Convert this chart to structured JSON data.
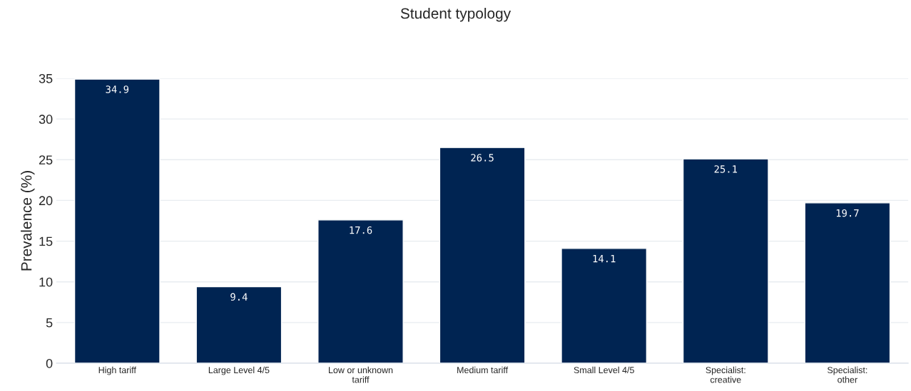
{
  "chart_data": {
    "type": "bar",
    "title": "Student typology",
    "ylabel": "Prevalence (%)",
    "categories": [
      "High tariff",
      "Large Level 4/5",
      "Low or unknown tariff",
      "Medium tariff",
      "Small Level 4/5",
      "Specialist: creative",
      "Specialist: other"
    ],
    "values": [
      34.9,
      9.4,
      17.6,
      26.5,
      14.1,
      25.1,
      19.7
    ],
    "color": "#002452",
    "ylim": [
      0,
      35
    ],
    "yticks": [
      0,
      5,
      10,
      15,
      20,
      25,
      30,
      35
    ],
    "grid": "y",
    "data_labels": true,
    "legend": false
  }
}
